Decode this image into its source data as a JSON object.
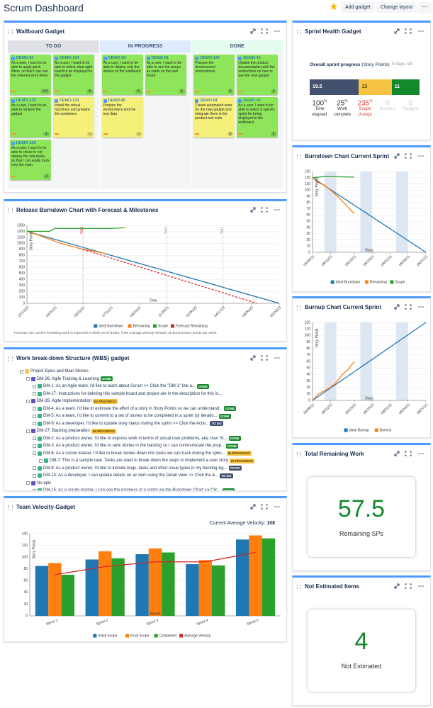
{
  "header": {
    "title": "Scrum Dashboard",
    "buttons": [
      "Add gadget",
      "Change layout"
    ]
  },
  "wallboard": {
    "title": "Wallboard Gadget",
    "columns": [
      {
        "name": "TO DO",
        "color": "#dfe1e6",
        "cards": [
          {
            "key": "DEMO-82",
            "summary": "As a user, I want to be able to apply quick filters, so that I can see the relevant work items",
            "estimate": "7.5",
            "color": "#8ee55a"
          },
          {
            "key": "DEMO-124",
            "summary": "As a user, I want to be able to select what agile board to be displayed in the gadget",
            "estimate": "8",
            "color": "#8ee55a"
          },
          {
            "key": "DEMO-125",
            "summary": "As a user, I want to be able to rename the gadget",
            "estimate": "1",
            "color": "#8ee55a"
          },
          {
            "key": "DEMO-123",
            "summary": "Install the virtual machines and prepare the containers",
            "estimate": "-",
            "color": "#f4f07a"
          },
          {
            "key": "DEMO-126",
            "summary": "As a user, I want to be able to chose to not display the sub-tasks, so that I can easily track only the main",
            "estimate": "2",
            "color": "#8ee55a"
          }
        ]
      },
      {
        "name": "IN PROGRESS",
        "color": "#deebff",
        "cards": [
          {
            "key": "DEMO-99",
            "summary": "As a user, I want to be able to display only the stories on the wallboard",
            "estimate": "5",
            "color": "#8ee55a"
          },
          {
            "key": "DEMO-81",
            "summary": "As a user, I want to be able to see the issues as cards on the wall board",
            "estimate": "3",
            "color": "#8ee55a"
          },
          {
            "key": "DEMO-86",
            "summary": "Prepare the environment and the test data",
            "estimate": "-",
            "color": "#f4f07a"
          }
        ]
      },
      {
        "name": "DONE",
        "color": "#e3fcef",
        "cards": [
          {
            "key": "DEMO-122",
            "summary": "Prepare the development environment",
            "estimate": "3",
            "color": "#8ee55a"
          },
          {
            "key": "DEMO-43",
            "summary": "Update the product documentation with the instructions on how to use the new gadget",
            "estimate": "1",
            "color": "#8ee55a"
          },
          {
            "key": "DEMO-94",
            "summary": "Create automated tests for the new gadget and integrate them in the product test suite",
            "estimate": "5",
            "color": "#f4f07a"
          },
          {
            "key": "DEMO-35",
            "summary": "As a user, I want to be able to select a specific sprint for being displayed in the wallboard",
            "estimate": "2",
            "color": "#8ee55a"
          }
        ]
      }
    ]
  },
  "wbs": {
    "title": "Work break-down Structure (WBS) gadget",
    "rows": [
      {
        "text": "Project Epics and Main Stories",
        "level": 0
      },
      {
        "text": "DM-26: Agile Training & Learning",
        "level": 1,
        "status": {
          "label": "DONE",
          "color": "#14892c",
          "text_color": "#fff"
        }
      },
      {
        "text": "DM-1: As an Agile team, I'd like to learn about Scrum >> Click the \"DM-1\" link a...",
        "level": 2,
        "status": {
          "label": "DONE",
          "color": "#14892c",
          "text_color": "#fff"
        }
      },
      {
        "text": "DM-17: Instructions for deleting this sample board and project are in the description for this is...",
        "level": 2
      },
      {
        "text": "DM-25: Agile Implementation",
        "level": 1,
        "status": {
          "label": "IN PROGRESS",
          "color": "#f6c342",
          "text_color": "#594300"
        }
      },
      {
        "text": "DM-4: As a team, I'd like to estimate the effort of a story in Story Points so we can understand...",
        "level": 2,
        "status": {
          "label": "DONE",
          "color": "#14892c",
          "text_color": "#fff"
        }
      },
      {
        "text": "DM-5: As a team, I'd like to commit to a set of stories to be completed in a sprint (or iteratio...",
        "level": 2,
        "status": {
          "label": "DONE",
          "color": "#14892c",
          "text_color": "#fff"
        }
      },
      {
        "text": "DM-9: As a developer, I'd like to update story status during the sprint >> Click the Activ...",
        "level": 2,
        "status": {
          "label": "TO DO",
          "color": "#42526e",
          "text_color": "#fff"
        }
      },
      {
        "text": "DM-27: Backlog preparation",
        "level": 1,
        "status": {
          "label": "IN PROGRESS",
          "color": "#f6c342",
          "text_color": "#594300"
        }
      },
      {
        "text": "DM-2: As a product owner, I'd like to express work in terms of actual user problems, aka User St...",
        "level": 2,
        "status": {
          "label": "DONE",
          "color": "#14892c",
          "text_color": "#fff"
        }
      },
      {
        "text": "DM-3: As a product owner, I'd like to rank stories in the backlog so I can communicate the prop...",
        "level": 2,
        "status": {
          "label": "DONE",
          "color": "#14892c",
          "text_color": "#fff"
        }
      },
      {
        "text": "DM-6: As a scrum master, I'd like to break stories down into tasks we can track during the sprin...",
        "level": 2,
        "status": {
          "label": "IN PROGRESS",
          "color": "#f6c342",
          "text_color": "#594300"
        }
      },
      {
        "text": "DM-7: This is a sample task. Tasks are used to break down the steps to implement a user story",
        "level": 3,
        "status": {
          "label": "IN PROGRESS",
          "color": "#f6c342",
          "text_color": "#594300"
        }
      },
      {
        "text": "DM-8: As a product owner, I'd like to include bugs, tasks and other issue types in my backlog &g...",
        "level": 2,
        "status": {
          "label": "TO DO",
          "color": "#42526e",
          "text_color": "#fff"
        }
      },
      {
        "text": "DM-13: As a developer, I can update details on an item using the Detail View >> Click the &...",
        "level": 2,
        "status": {
          "label": "TO DO",
          "color": "#42526e",
          "text_color": "#fff"
        }
      },
      {
        "text": "No epic",
        "level": 1
      },
      {
        "text": "DM-15: As a scrum master, I can see the progress of a sprint via the Burndown Chart >> Clic...",
        "level": 2,
        "status": {
          "label": "DONE",
          "color": "#14892c",
          "text_color": "#fff"
        }
      }
    ]
  },
  "sprint_health": {
    "title": "Sprint Health Gadget",
    "heading": "Overall sprint progress",
    "heading_unit": "(Story Points)",
    "days_left": "9 days left",
    "segments": [
      {
        "value": 19.5,
        "color": "#42526e",
        "text_color": "#fff"
      },
      {
        "value": 13,
        "color": "#f6c342",
        "text_color": "#594300"
      },
      {
        "value": 11,
        "color": "#14892c",
        "text_color": "#fff"
      }
    ],
    "stats": [
      {
        "value": "100",
        "unit": "%",
        "label": "Time elapsed",
        "color": "#333"
      },
      {
        "value": "25",
        "unit": "%",
        "label": "Work complete",
        "color": "#333"
      },
      {
        "value": "235",
        "unit": "%",
        "label": "Scope change",
        "color": "#d04437"
      },
      {
        "value": "0",
        "unit": "",
        "label": "Blockers",
        "color": "#ccc"
      },
      {
        "value": "0",
        "unit": "",
        "label": "Flagged",
        "color": "#ccc"
      }
    ]
  },
  "total_remaining": {
    "title": "Total Remaining Work",
    "value": "57.5",
    "label": "Remaining SPs"
  },
  "not_estimated": {
    "title": "Not Estimated Items",
    "value": "4",
    "label": "Not Estimated"
  },
  "chart_data": [
    {
      "type": "line",
      "title": "Release Burndown Chart with Forecast & Milestones",
      "x_label": "Time",
      "y_label": "Story Points",
      "xlim": [
        "12/13/20",
        "09/04/22"
      ],
      "xticks": [
        "12/13/20",
        "02/21/21",
        "05/02/21",
        "07/11/21",
        "09/19/21",
        "11/28/21",
        "02/06/22",
        "04/17/22",
        "06/26/22",
        "09/04/22"
      ],
      "ylim": [
        0,
        1300
      ],
      "yticks": [
        0,
        100,
        200,
        300,
        400,
        500,
        600,
        700,
        800,
        900,
        1000,
        1100,
        1200,
        1300
      ],
      "grid": true,
      "markers": [
        {
          "x": "05/02/21",
          "label": "25%",
          "color": "#d62728"
        },
        {
          "x": "11/28/21",
          "label": "50%",
          "color": "#999"
        },
        {
          "x": "04/17/22",
          "label": "75%",
          "color": "#999"
        }
      ],
      "series": [
        {
          "name": "Ideal Burndown",
          "color": "#1f77b4",
          "x": [
            "12/13/20",
            "09/04/22"
          ],
          "values": [
            1200,
            0
          ]
        },
        {
          "name": "Remaining",
          "color": "#ff7f0e",
          "x": [
            "12/13/20",
            "01/10/21",
            "02/07/21",
            "03/07/21",
            "04/04/21",
            "05/02/21",
            "05/30/21",
            "06/27/21"
          ],
          "values": [
            1200,
            1140,
            1070,
            1000,
            950,
            900,
            870,
            830
          ]
        },
        {
          "name": "Scope",
          "color": "#2ca02c",
          "x": [
            "12/13/20",
            "02/07/21",
            "02/21/21",
            "07/11/21",
            "08/15/21"
          ],
          "values": [
            1200,
            1200,
            1250,
            1250,
            1260
          ]
        },
        {
          "name": "Forecast Remaining",
          "color": "#d62728",
          "dashed": true,
          "x": [
            "05/02/21",
            "07/10/22"
          ],
          "values": [
            900,
            0
          ]
        }
      ],
      "note": "Forecast: the current remaining work is expected to finish on 07/10/22, if the average velocity remains 15 burned story points per week."
    },
    {
      "type": "bar",
      "title": "Team Velocity-Gadget",
      "summary_label": "Current Average Velocity:",
      "summary_value": 108,
      "x_label": "Sprints",
      "y_label": "Story Points",
      "categories": [
        "Sprint 1",
        "Sprint 2",
        "Sprint 3",
        "Sprint 4",
        "Sprint 5"
      ],
      "ylim": [
        0,
        140
      ],
      "yticks": [
        0,
        20,
        40,
        60,
        80,
        100,
        120,
        140
      ],
      "grid": true,
      "series": [
        {
          "name": "Initial Scope",
          "color": "#1f77b4",
          "values": [
            85,
            96,
            105,
            88,
            130
          ]
        },
        {
          "name": "Final Scope",
          "color": "#ff7f0e",
          "values": [
            90,
            110,
            115,
            95,
            137
          ]
        },
        {
          "name": "Completed",
          "color": "#2ca02c",
          "values": [
            70,
            98,
            108,
            86,
            132
          ]
        },
        {
          "name": "Average Velocity",
          "color": "#d62728",
          "type": "line",
          "values": [
            70,
            84,
            92,
            92,
            108
          ]
        }
      ]
    },
    {
      "type": "line",
      "title": "Burndown Chart Current Sprint",
      "x_label": "Days",
      "y_label": "Story Points",
      "xlim": [
        "08/08/21",
        "08/27/21"
      ],
      "xticks": [
        "08/08/21",
        "08/11/21",
        "08/15/21",
        "08/18/21",
        "08/21/21",
        "08/24/21",
        "08/27/21"
      ],
      "ylim": [
        0,
        130
      ],
      "yticks": [
        0,
        10,
        20,
        30,
        40,
        50,
        60,
        70,
        80,
        90,
        100,
        110,
        120,
        130
      ],
      "grid": true,
      "shaded_ranges": [
        [
          "08/10/21",
          "08/12/21"
        ],
        [
          "08/16/21",
          "08/18/21"
        ],
        [
          "08/22/21",
          "08/24/21"
        ]
      ],
      "series": [
        {
          "name": "Ideal Burndown",
          "color": "#1f77b4",
          "x": [
            "08/08/21",
            "08/27/21"
          ],
          "values": [
            120,
            0
          ]
        },
        {
          "name": "Remaining",
          "color": "#ff7f0e",
          "x": [
            "08/08/21",
            "08/09/21",
            "08/10/21",
            "08/11/21",
            "08/12/21",
            "08/13/21",
            "08/14/21",
            "08/15/21"
          ],
          "values": [
            120,
            112,
            108,
            100,
            92,
            82,
            72,
            62
          ]
        },
        {
          "name": "Scope",
          "color": "#2ca02c",
          "x": [
            "08/08/21",
            "08/10/21",
            "08/15/21"
          ],
          "values": [
            120,
            122,
            121
          ]
        }
      ]
    },
    {
      "type": "line",
      "title": "Burnup Chart Current Sprint",
      "x_label": "Days",
      "y_label": "Story Points",
      "xlim": [
        "08/08/21",
        "08/27/21"
      ],
      "xticks": [
        "08/08/21",
        "08/11/21",
        "08/15/21",
        "08/18/21",
        "08/21/21",
        "08/24/21",
        "08/27/21"
      ],
      "ylim": [
        0,
        120
      ],
      "yticks": [
        0,
        10,
        20,
        30,
        40,
        50,
        60,
        70,
        80,
        90,
        100,
        110,
        120
      ],
      "grid": true,
      "shaded_ranges": [
        [
          "08/10/21",
          "08/12/21"
        ],
        [
          "08/16/21",
          "08/18/21"
        ],
        [
          "08/22/21",
          "08/24/21"
        ]
      ],
      "series": [
        {
          "name": "Ideal Burnup",
          "color": "#1f77b4",
          "x": [
            "08/08/21",
            "08/27/21"
          ],
          "values": [
            0,
            120
          ]
        },
        {
          "name": "Burned",
          "color": "#ff7f0e",
          "x": [
            "08/08/21",
            "08/09/21",
            "08/10/21",
            "08/11/21",
            "08/12/21",
            "08/13/21",
            "08/14/21",
            "08/15/21"
          ],
          "values": [
            0,
            10,
            15,
            20,
            28,
            40,
            48,
            60
          ]
        }
      ]
    }
  ]
}
